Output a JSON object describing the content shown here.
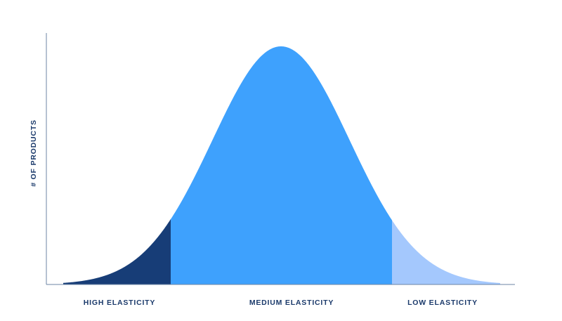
{
  "y_axis": {
    "label": "# OF PRODUCTS"
  },
  "regions": [
    {
      "label": "HIGH ELASTICITY"
    },
    {
      "label": "MEDIUM ELASTICITY"
    },
    {
      "label": "LOW ELASTICITY"
    }
  ]
}
